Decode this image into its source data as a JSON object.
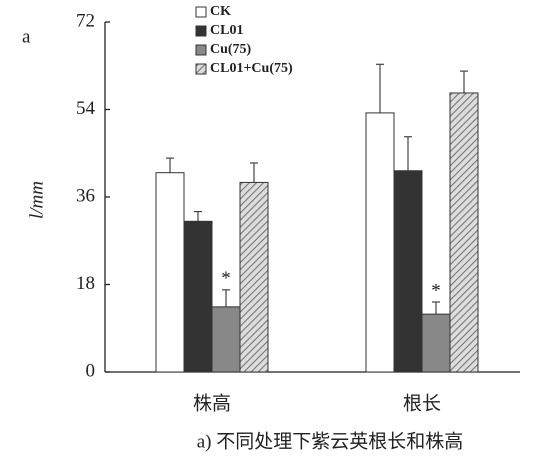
{
  "chart_data": {
    "type": "bar",
    "panel_label": "a",
    "ylabel": "l/mm",
    "caption": "a) 不同处理下紫云英根长和株高",
    "categories": [
      "株高",
      "根长"
    ],
    "series": [
      {
        "name": "CK",
        "color": "#ffffff",
        "values": [
          41,
          53.3
        ],
        "errors": [
          3,
          10
        ]
      },
      {
        "name": "CL01",
        "color": "#333333",
        "values": [
          31,
          41.4
        ],
        "errors": [
          2,
          7
        ]
      },
      {
        "name": "Cu(75)",
        "color": "#888888",
        "values": [
          13.4,
          11.9
        ],
        "errors": [
          3.5,
          2.5
        ],
        "annotations": [
          "*",
          "*"
        ]
      },
      {
        "name": "CL01+Cu(75)",
        "color": "#999999",
        "pattern": "hatch",
        "values": [
          39,
          57.4
        ],
        "errors": [
          4,
          4.5
        ]
      }
    ],
    "ylim": [
      0,
      72
    ],
    "yticks": [
      0,
      18,
      36,
      54,
      72
    ]
  }
}
